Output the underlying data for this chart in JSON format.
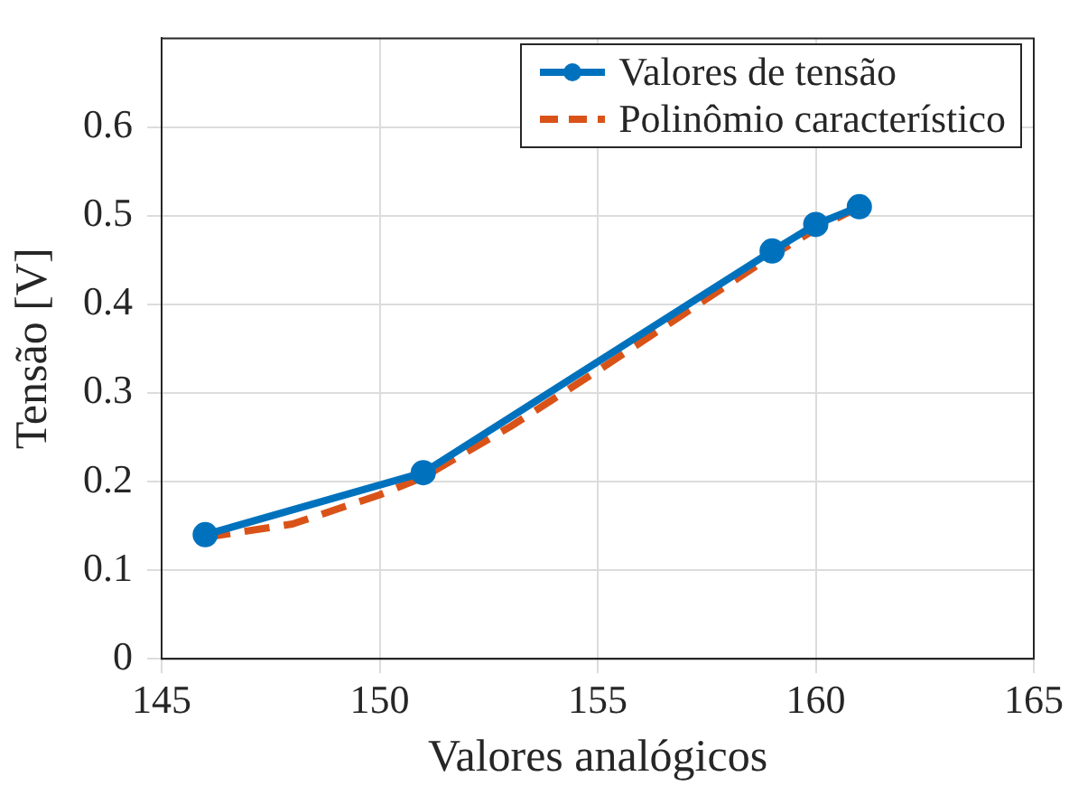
{
  "chart_data": {
    "type": "line",
    "xlabel": "Valores analógicos",
    "ylabel": "Tensão [V]",
    "series": [
      {
        "name": "Valores de tensão",
        "color": "#0072bd",
        "marker": "circle",
        "line_style": "solid",
        "x": [
          146,
          151,
          159,
          160,
          161
        ],
        "values": [
          0.14,
          0.21,
          0.46,
          0.49,
          0.51
        ]
      },
      {
        "name": "Polinômio característico",
        "color": "#d95319",
        "marker": "none",
        "line_style": "dashed",
        "x": [
          146,
          148,
          150,
          151,
          153,
          155,
          157,
          159,
          160,
          161
        ],
        "values": [
          0.137,
          0.152,
          0.185,
          0.205,
          0.262,
          0.325,
          0.39,
          0.455,
          0.485,
          0.51
        ]
      }
    ],
    "xlim": [
      145,
      165
    ],
    "xticks": [
      145,
      150,
      155,
      160,
      165
    ],
    "ylim": [
      0,
      0.7
    ],
    "yticks": [
      0,
      0.1,
      0.2,
      0.3,
      0.4,
      0.5,
      0.6
    ],
    "grid": true,
    "legend": "top right"
  }
}
